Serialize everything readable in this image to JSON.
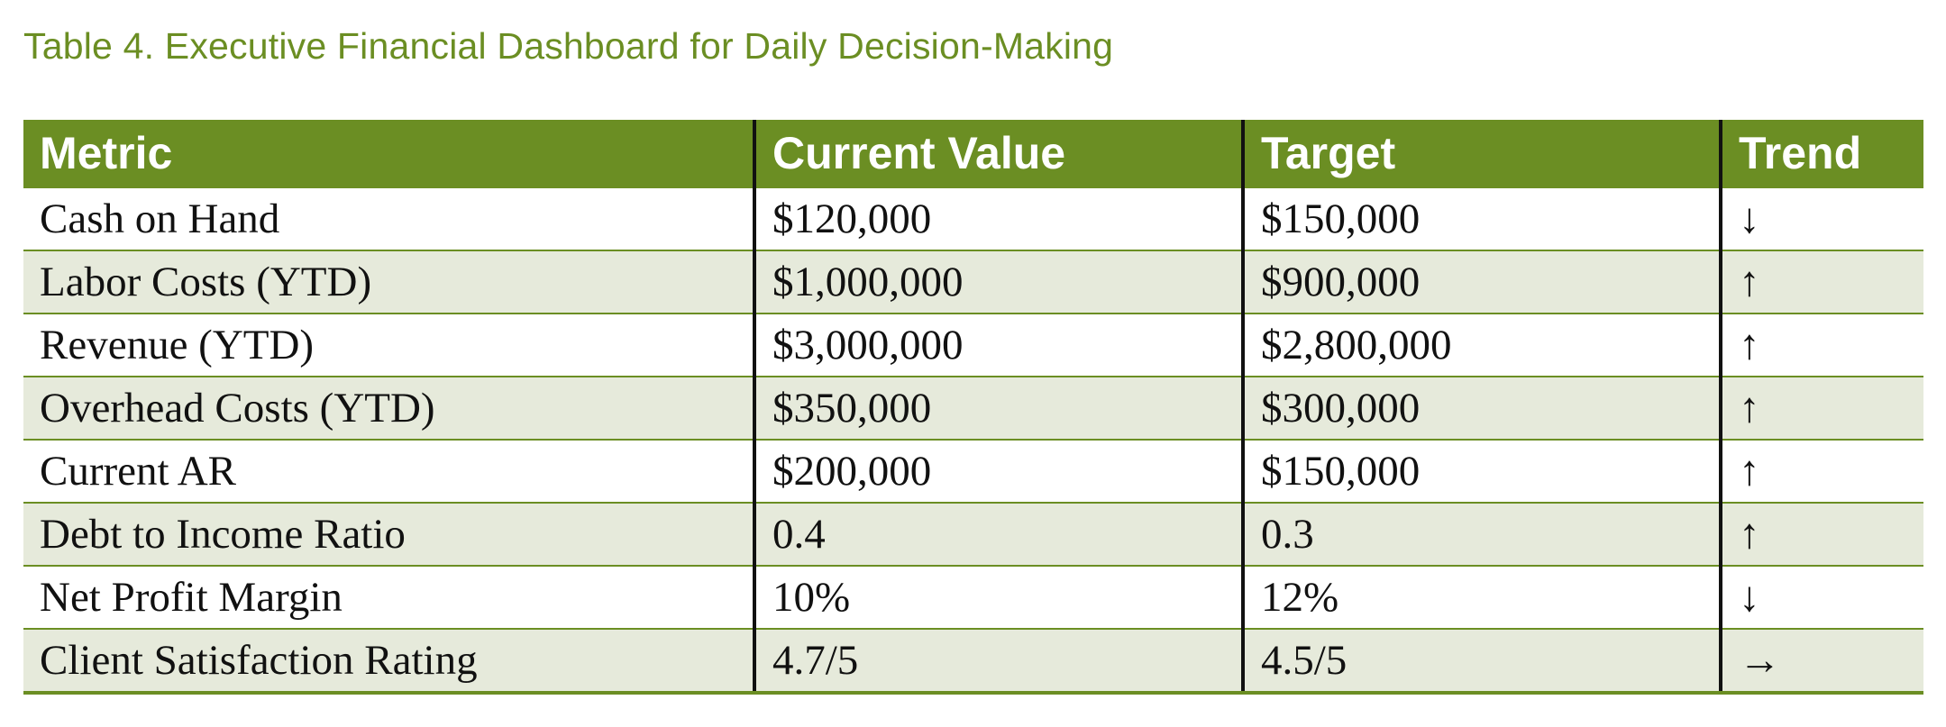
{
  "caption": "Table 4. Executive Financial Dashboard for Daily Decision-Making",
  "colors": {
    "accent": "#6b8e23",
    "row_shade": "#e6eadb",
    "divider": "#111111"
  },
  "table": {
    "headers": [
      "Metric",
      "Current Value",
      "Target",
      "Trend"
    ],
    "rows": [
      {
        "metric": "Cash on Hand",
        "current": "$120,000",
        "target": "$150,000",
        "trend": "↓"
      },
      {
        "metric": "Labor Costs (YTD)",
        "current": "$1,000,000",
        "target": "$900,000",
        "trend": "↑"
      },
      {
        "metric": "Revenue (YTD)",
        "current": "$3,000,000",
        "target": "$2,800,000",
        "trend": "↑"
      },
      {
        "metric": "Overhead Costs (YTD)",
        "current": "$350,000",
        "target": "$300,000",
        "trend": "↑"
      },
      {
        "metric": "Current AR",
        "current": "$200,000",
        "target": "$150,000",
        "trend": "↑"
      },
      {
        "metric": "Debt to Income Ratio",
        "current": "0.4",
        "target": "0.3",
        "trend": "↑"
      },
      {
        "metric": "Net Profit Margin",
        "current": "10%",
        "target": "12%",
        "trend": "↓"
      },
      {
        "metric": "Client Satisfaction Rating",
        "current": "4.7/5",
        "target": "4.5/5",
        "trend": "→"
      }
    ]
  }
}
